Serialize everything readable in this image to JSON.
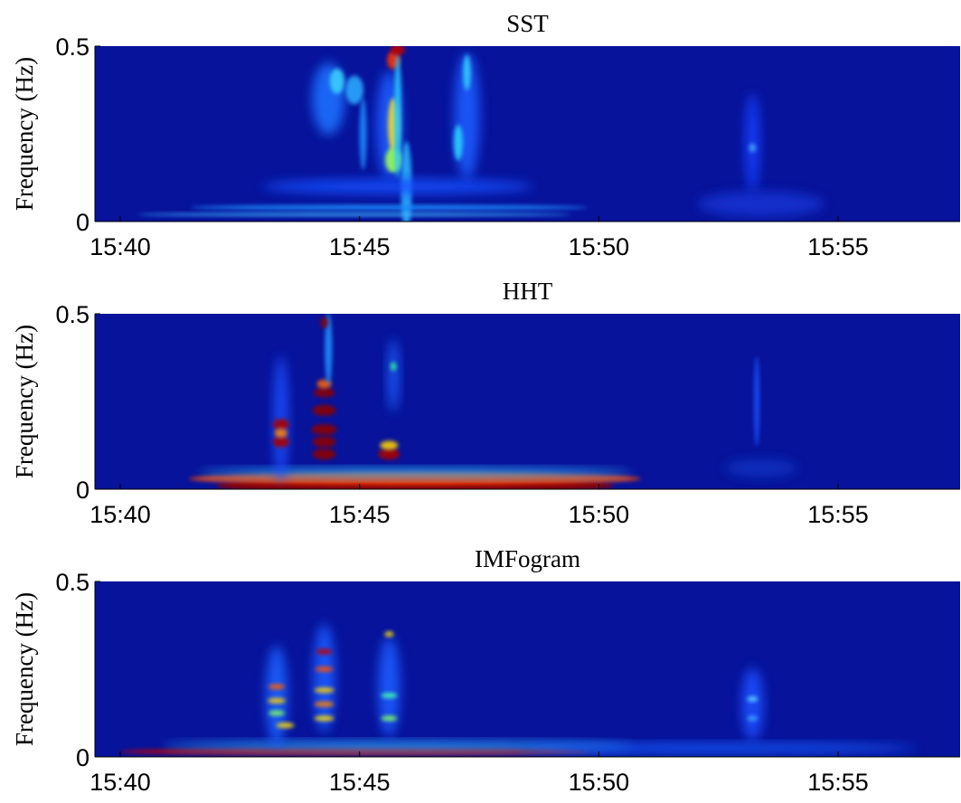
{
  "chart_data": [
    {
      "type": "spectrogram",
      "title": "SST",
      "y_label": "Frequency (Hz)",
      "xlim": [
        939.47,
        957.55
      ],
      "xticks": [
        {
          "value": 940,
          "label": "15:40"
        },
        {
          "value": 945,
          "label": "15:45"
        },
        {
          "value": 950,
          "label": "15:50"
        },
        {
          "value": 955,
          "label": "15:55"
        }
      ],
      "ylim": [
        0,
        0.5
      ],
      "yticks": [
        0,
        0.5
      ]
    },
    {
      "type": "spectrogram",
      "title": "HHT",
      "y_label": "Frequency (Hz)",
      "xlim": [
        939.47,
        957.55
      ],
      "xticks": [
        {
          "value": 940,
          "label": "15:40"
        },
        {
          "value": 945,
          "label": "15:45"
        },
        {
          "value": 950,
          "label": "15:50"
        },
        {
          "value": 955,
          "label": "15:55"
        }
      ],
      "ylim": [
        0,
        0.5
      ],
      "yticks": [
        0,
        0.5
      ]
    },
    {
      "type": "spectrogram",
      "title": "IMFogram",
      "y_label": "Frequency (Hz)",
      "xlim": [
        939.47,
        957.55
      ],
      "xticks": [
        {
          "value": 940,
          "label": "15:40"
        },
        {
          "value": 945,
          "label": "15:45"
        },
        {
          "value": 950,
          "label": "15:50"
        },
        {
          "value": 955,
          "label": "15:55"
        }
      ],
      "ylim": [
        0,
        0.5
      ],
      "yticks": [
        0,
        0.5
      ]
    }
  ]
}
